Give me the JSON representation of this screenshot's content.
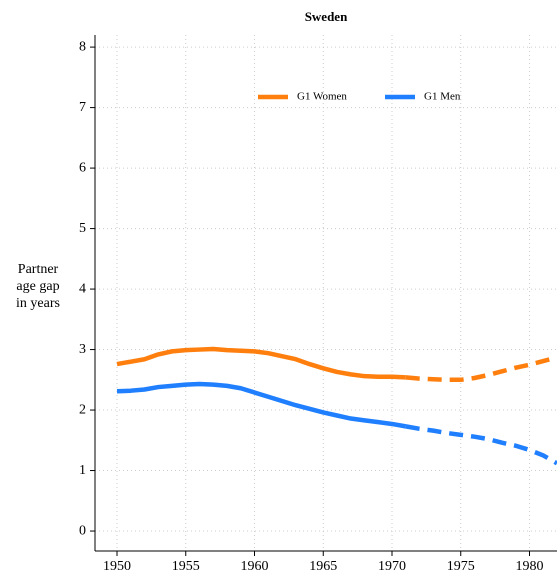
{
  "chart_data": {
    "type": "line",
    "title": "Sweden",
    "y_label": [
      "Partner",
      "age gap",
      "in years"
    ],
    "x": [
      1950,
      1951,
      1952,
      1953,
      1954,
      1955,
      1956,
      1957,
      1958,
      1959,
      1960,
      1961,
      1962,
      1963,
      1964,
      1965,
      1966,
      1967,
      1968,
      1969,
      1970,
      1971,
      1972,
      1973,
      1974,
      1975,
      1976,
      1977,
      1978,
      1979,
      1980,
      1981,
      1982
    ],
    "dashed_from": 1971,
    "series": [
      {
        "name": "G1 Women",
        "color": "#ff7f0e",
        "values": [
          2.76,
          2.8,
          2.84,
          2.92,
          2.97,
          2.99,
          3.0,
          3.01,
          2.99,
          2.98,
          2.97,
          2.94,
          2.89,
          2.84,
          2.76,
          2.69,
          2.63,
          2.59,
          2.56,
          2.55,
          2.55,
          2.54,
          2.52,
          2.51,
          2.5,
          2.5,
          2.53,
          2.58,
          2.64,
          2.7,
          2.75,
          2.81,
          2.87
        ]
      },
      {
        "name": "G1 Men",
        "color": "#1f7fff",
        "values": [
          2.31,
          2.32,
          2.34,
          2.38,
          2.4,
          2.42,
          2.43,
          2.42,
          2.4,
          2.36,
          2.29,
          2.22,
          2.15,
          2.08,
          2.02,
          1.96,
          1.91,
          1.86,
          1.83,
          1.8,
          1.77,
          1.73,
          1.69,
          1.66,
          1.62,
          1.59,
          1.56,
          1.52,
          1.46,
          1.41,
          1.34,
          1.25,
          1.12
        ]
      }
    ],
    "xlim": [
      1948.4,
      1982
    ],
    "xticks": [
      1950,
      1955,
      1960,
      1965,
      1970,
      1975,
      1980
    ],
    "ylim": [
      -0.33,
      8.2
    ],
    "yticks": [
      0,
      1,
      2,
      3,
      4,
      5,
      6,
      7,
      8
    ],
    "grid": true,
    "legend": "top"
  }
}
